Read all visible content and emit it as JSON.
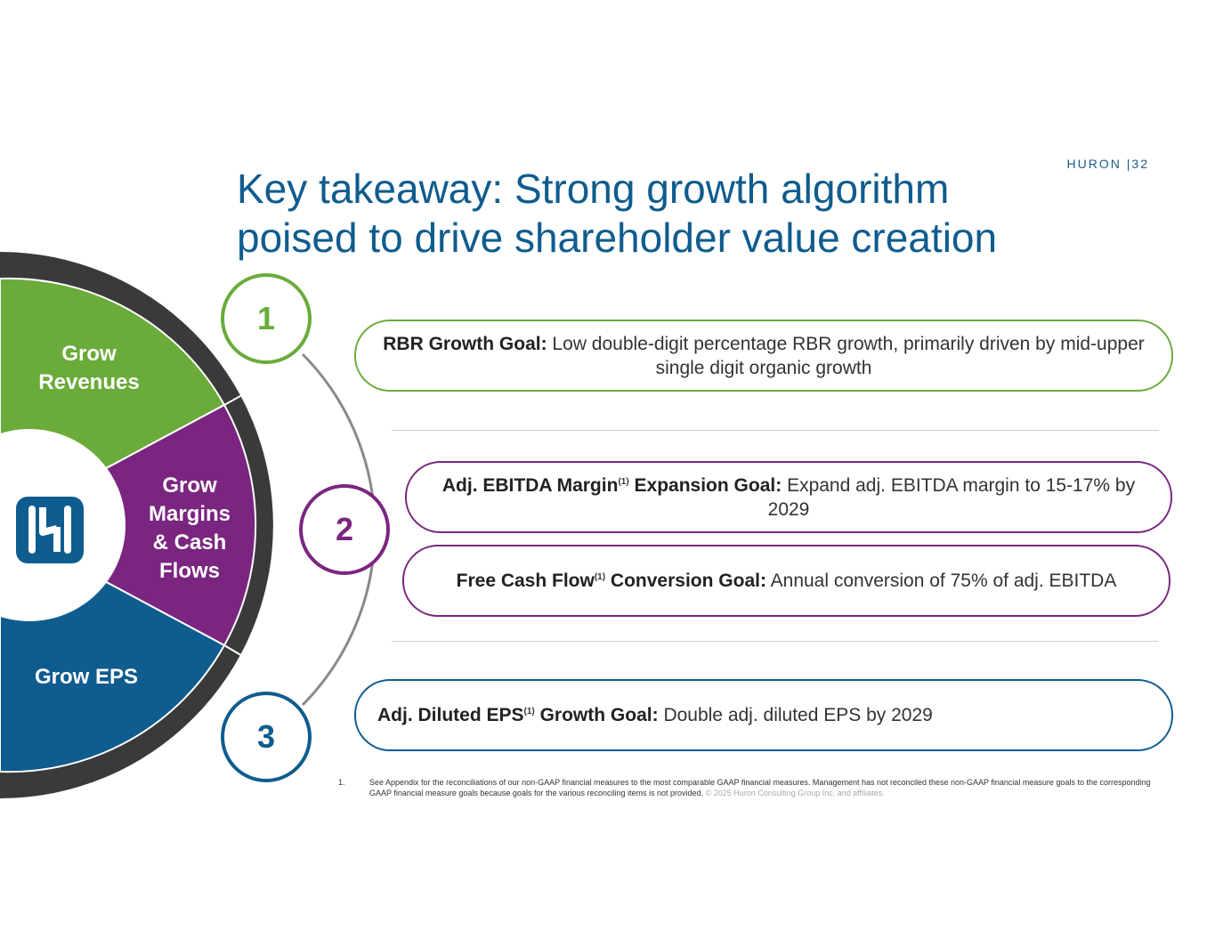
{
  "brand": {
    "name": "HURON",
    "separator": "|",
    "page": "32"
  },
  "title": {
    "line1": "Key takeaway: Strong growth algorithm",
    "line2": "poised to drive shareholder value creation"
  },
  "wheel": {
    "segments": [
      {
        "line1": "Grow",
        "line2": "Revenues",
        "color": "#6aab3a"
      },
      {
        "line1": "Grow",
        "line2": "Margins",
        "line3": "& Cash",
        "line4": "Flows",
        "color": "#7a2680"
      },
      {
        "line1": "Grow EPS",
        "color": "#0f5c8e"
      }
    ],
    "ring_color": "#3a3a3a",
    "logo_icon": "huron-logo-icon"
  },
  "steps": [
    {
      "number": "1",
      "color": "#6aab3a"
    },
    {
      "number": "2",
      "color": "#7a2680"
    },
    {
      "number": "3",
      "color": "#0f5c8e"
    }
  ],
  "goals": {
    "rbr": {
      "label": "RBR Growth Goal:",
      "text": "Low double-digit percentage RBR growth, primarily driven by mid-upper single digit organic growth"
    },
    "ebitda": {
      "label_a": "Adj. EBITDA Margin",
      "sup": "(1)",
      "label_b": "Expansion Goal:",
      "text": "Expand adj. EBITDA margin to 15-17% by 2029"
    },
    "fcf": {
      "label_a": "Free Cash Flow",
      "sup": "(1)",
      "label_b": "Conversion Goal:",
      "text": "Annual conversion of 75% of adj. EBITDA"
    },
    "eps": {
      "label_a": "Adj. Diluted EPS",
      "sup": "(1)",
      "label_b": "Growth Goal:",
      "text": "Double adj. diluted EPS by 2029"
    }
  },
  "footnote": {
    "number": "1.",
    "text": "See Appendix for the reconciliations of our non-GAAP financial measures to the most comparable GAAP financial measures. Management has not reconciled these non-GAAP financial measure goals to the corresponding GAAP financial measure goals because goals for the various reconciling items is not provided.",
    "copyright": "© 2025 Huron Consulting Group Inc. and affiliates."
  }
}
